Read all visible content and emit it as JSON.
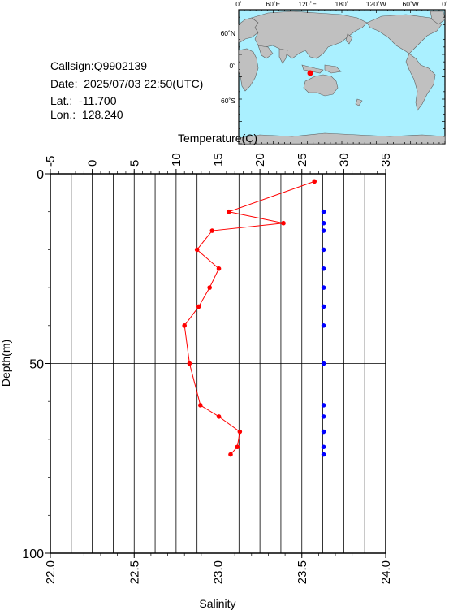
{
  "station": {
    "callsign_label": "Callsign:",
    "callsign": "Q9902139",
    "date_label": "Date:",
    "date": "2025/07/03 22:50(UTC)",
    "lat_label": "Lat.:",
    "lat": "-11.700",
    "lon_label": "Lon.:",
    "lon": "128.240"
  },
  "map": {
    "top_ticks": [
      "0˚",
      "60˚E",
      "120˚E",
      "180˚",
      "120˚W",
      "60˚W",
      "0˚"
    ],
    "left_ticks": [
      "60˚N",
      "0˚",
      "60˚S"
    ],
    "ocean_color": "#aaf0ff",
    "land_color": "#c0c0c0",
    "marker_color": "#ff0000"
  },
  "chart_data": {
    "type": "scatter",
    "title": "",
    "ylabel": "Depth(m)",
    "ylim": [
      0,
      100
    ],
    "yticks": [
      "0",
      "50",
      "100"
    ],
    "temperature_axis": {
      "label": "Temperature(C)",
      "range": [
        -5,
        35
      ],
      "ticks": [
        "-5",
        "0",
        "5",
        "10",
        "15",
        "20",
        "25",
        "30",
        "35"
      ]
    },
    "salinity_axis": {
      "label": "Salinity",
      "range": [
        22.0,
        24.0
      ],
      "ticks": [
        "22.0",
        "22.5",
        "23.0",
        "23.5",
        "24.0"
      ]
    },
    "grid": true,
    "series": [
      {
        "axis": "temperature",
        "color": "#ff0000",
        "connected": true,
        "depth": [
          2,
          10,
          13,
          15,
          20,
          25,
          30,
          35,
          40,
          50,
          61,
          64,
          68,
          72,
          74
        ],
        "values": [
          26.5,
          16.3,
          22.8,
          14.3,
          12.5,
          15.1,
          14.0,
          12.7,
          11.0,
          11.6,
          12.9,
          15.1,
          17.6,
          17.3,
          16.5
        ]
      },
      {
        "axis": "salinity",
        "color": "#0000ff",
        "connected": false,
        "depth": [
          10,
          13,
          15,
          20,
          25,
          30,
          35,
          40,
          50,
          61,
          64,
          68,
          72,
          74
        ],
        "values": [
          23.63,
          23.63,
          23.63,
          23.63,
          23.63,
          23.63,
          23.63,
          23.63,
          23.63,
          23.63,
          23.63,
          23.63,
          23.63,
          23.63
        ]
      }
    ]
  }
}
